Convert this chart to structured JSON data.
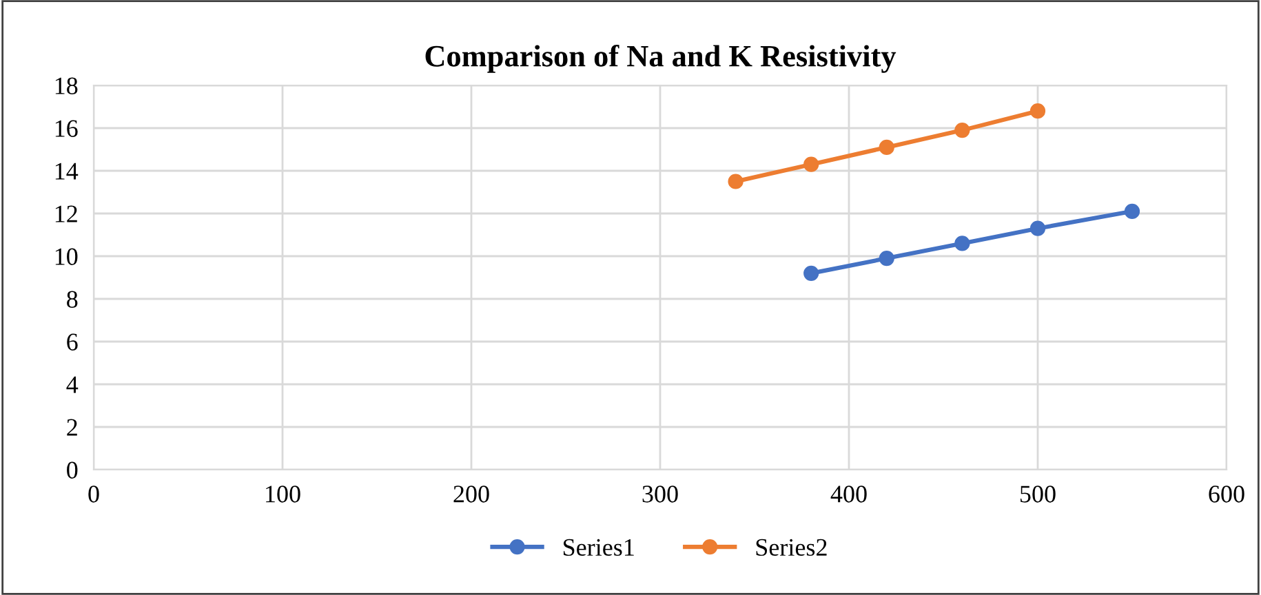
{
  "chart_data": {
    "type": "line",
    "title": "Comparison of Na and K Resistivity",
    "series": [
      {
        "name": "Series1",
        "color": "#4472c4",
        "x": [
          380,
          420,
          460,
          500,
          550
        ],
        "values": [
          9.2,
          9.9,
          10.6,
          11.3,
          12.1
        ]
      },
      {
        "name": "Series2",
        "color": "#ed7d31",
        "x": [
          340,
          380,
          420,
          460,
          500
        ],
        "values": [
          13.5,
          14.3,
          15.1,
          15.9,
          16.8
        ]
      }
    ],
    "xlim": [
      0,
      600
    ],
    "xticks": [
      0,
      100,
      200,
      300,
      400,
      500,
      600
    ],
    "ylim": [
      0,
      18
    ],
    "yticks": [
      0,
      2,
      4,
      6,
      8,
      10,
      12,
      14,
      16,
      18
    ],
    "grid": true,
    "legend": "bottom",
    "marker": "circle",
    "line_style": "solid"
  }
}
